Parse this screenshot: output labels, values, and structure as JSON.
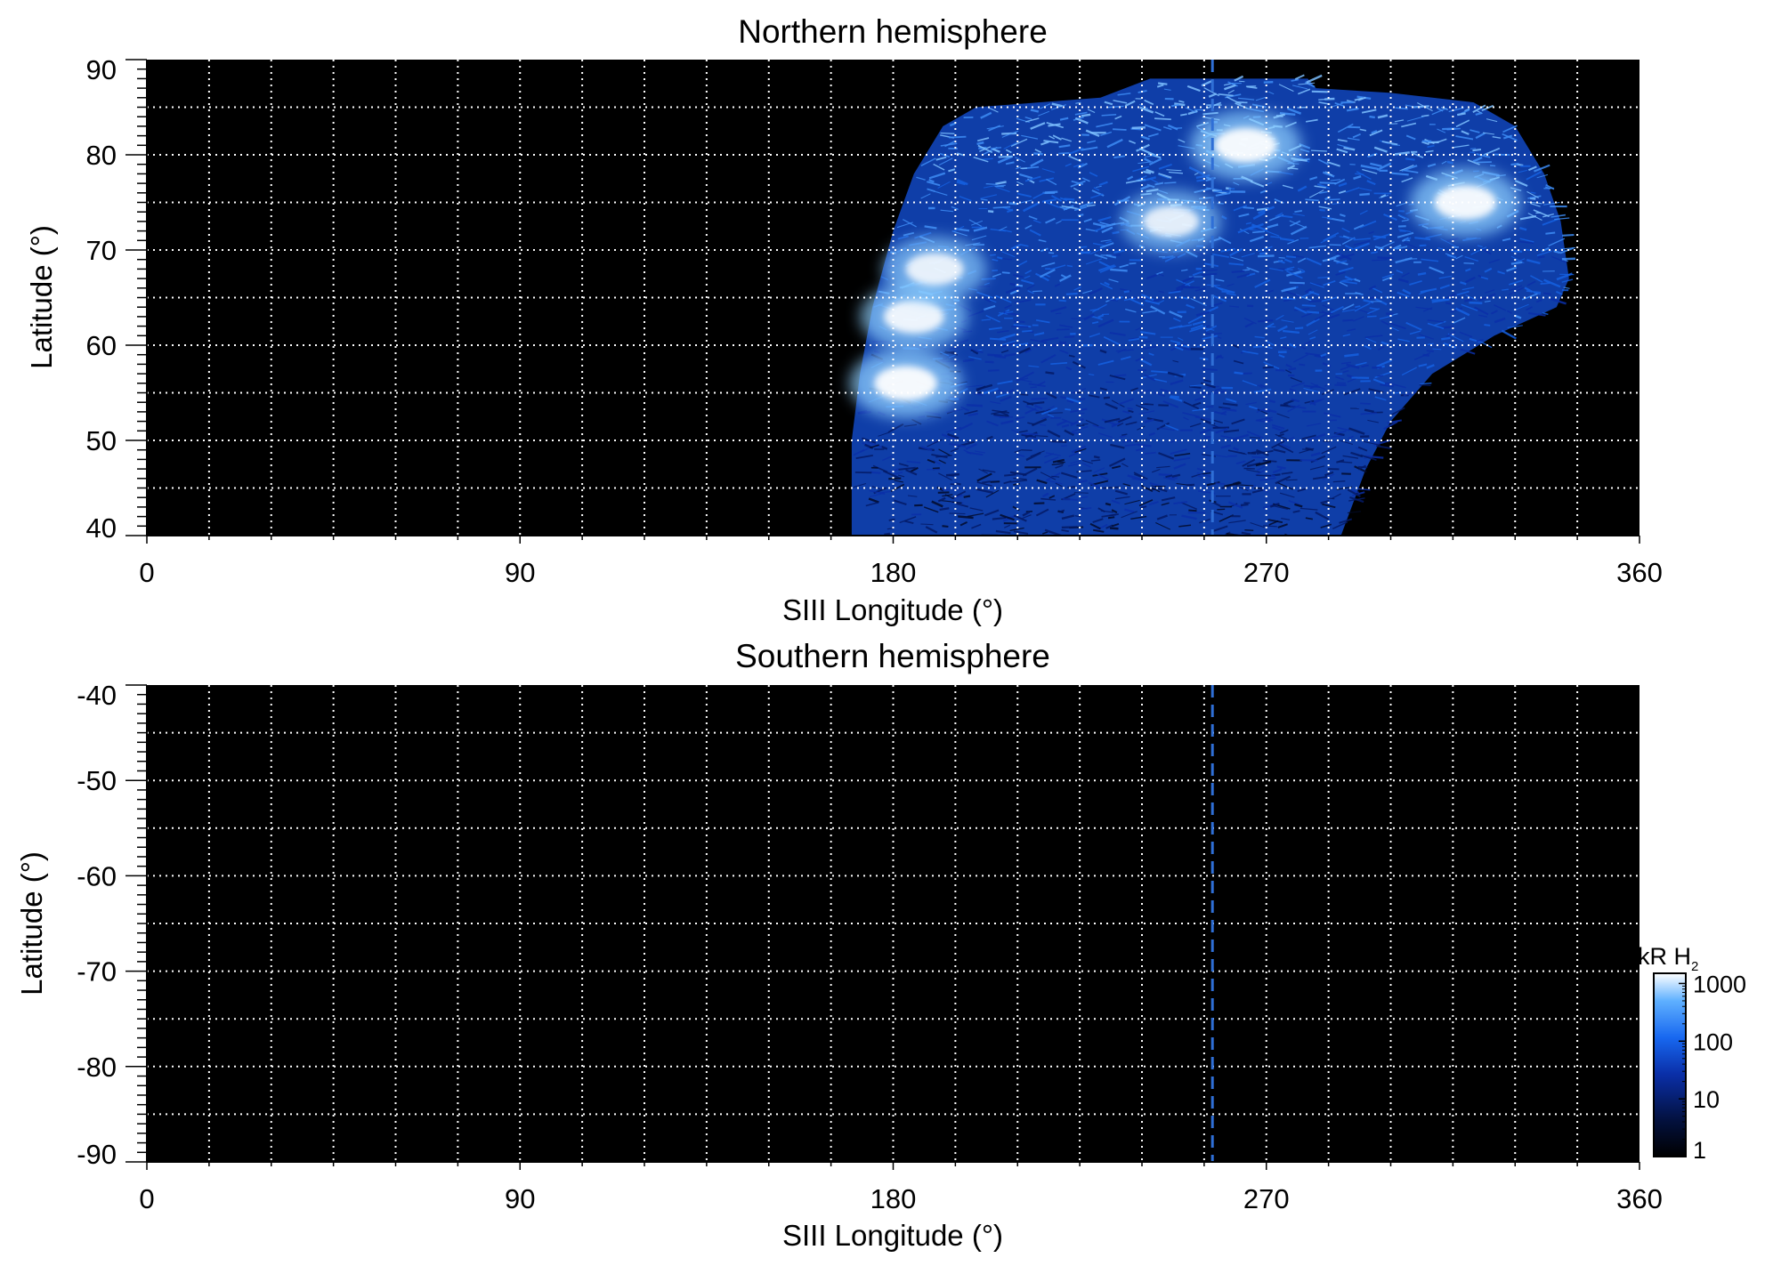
{
  "chart_data": [
    {
      "type": "heatmap",
      "title": "Northern hemisphere",
      "xlabel": "SIII Longitude (°)",
      "ylabel": "Latitude (°)",
      "xlim": [
        0,
        360
      ],
      "ylim": [
        40,
        90
      ],
      "xticks": [
        0,
        90,
        180,
        270,
        360
      ],
      "xtick_labels": [
        "0",
        "90",
        "180",
        "270",
        "360"
      ],
      "yticks": [
        40,
        50,
        60,
        70,
        80,
        90
      ],
      "ytick_labels": [
        "40",
        "50",
        "60",
        "70",
        "80",
        "90"
      ],
      "grid": true,
      "grid_style": "dotted white, every 15° longitude and 5° latitude",
      "background_color": "#000000",
      "marker_line": {
        "longitude": 257,
        "style": "dashed",
        "color": "#2f6fd6"
      },
      "coverage_region": {
        "description": "Emission mapped only within this longitude/latitude region; black elsewhere",
        "outline": [
          [
            170,
            40
          ],
          [
            170,
            50
          ],
          [
            172,
            57
          ],
          [
            175,
            64
          ],
          [
            180,
            72
          ],
          [
            185,
            78
          ],
          [
            192,
            83
          ],
          [
            200,
            85
          ],
          [
            230,
            86
          ],
          [
            242,
            88
          ],
          [
            280,
            88
          ],
          [
            282,
            87
          ],
          [
            300,
            86.5
          ],
          [
            320,
            85.5
          ],
          [
            330,
            83
          ],
          [
            337,
            78
          ],
          [
            341,
            73
          ],
          [
            343,
            67
          ],
          [
            340,
            64
          ],
          [
            325,
            61
          ],
          [
            310,
            57
          ],
          [
            300,
            52
          ],
          [
            294,
            47
          ],
          [
            288,
            40
          ]
        ]
      },
      "bright_features": [
        {
          "lon": 183,
          "lat": 56,
          "intensity_kR": 1200
        },
        {
          "lon": 185,
          "lat": 63,
          "intensity_kR": 700
        },
        {
          "lon": 190,
          "lat": 68,
          "intensity_kR": 450
        },
        {
          "lon": 265,
          "lat": 81,
          "intensity_kR": 1100
        },
        {
          "lon": 318,
          "lat": 75,
          "intensity_kR": 1000
        },
        {
          "lon": 247,
          "lat": 73,
          "intensity_kR": 300
        }
      ]
    },
    {
      "type": "heatmap",
      "title": "Southern hemisphere",
      "xlabel": "SIII Longitude (°)",
      "ylabel": "Latitude (°)",
      "xlim": [
        0,
        360
      ],
      "ylim": [
        -90,
        -40
      ],
      "xticks": [
        0,
        90,
        180,
        270,
        360
      ],
      "xtick_labels": [
        "0",
        "90",
        "180",
        "270",
        "360"
      ],
      "yticks": [
        -40,
        -50,
        -60,
        -70,
        -80,
        -90
      ],
      "ytick_labels": [
        "-40",
        "-50",
        "-60",
        "-70",
        "-80",
        "-90"
      ],
      "grid": true,
      "grid_style": "dotted white, every 15° longitude and 5° latitude",
      "background_color": "#000000",
      "marker_line": {
        "longitude": 257,
        "style": "dashed",
        "color": "#2f6fd6"
      },
      "coverage_region": null
    }
  ],
  "colorbar": {
    "label_main": "kR H",
    "label_sub": "2",
    "scale": "log",
    "ticks": [
      1,
      10,
      100,
      1000
    ],
    "tick_labels": [
      "1",
      "10",
      "100",
      "1000"
    ],
    "range": [
      1,
      1500
    ],
    "colors": [
      "#000000",
      "#03113f",
      "#0a2fa8",
      "#1868f0",
      "#5fb0ff",
      "#ffffff"
    ]
  }
}
